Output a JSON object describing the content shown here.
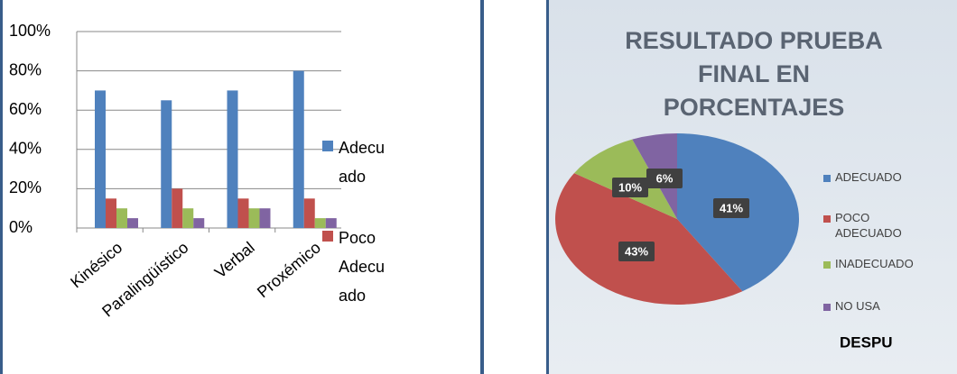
{
  "chart_data": [
    {
      "type": "bar",
      "categories": [
        "Kinésico",
        "Paralingüístico",
        "Verbal",
        "Proxémico"
      ],
      "series": [
        {
          "name": "Adecuado",
          "color": "#4f81bd",
          "values": [
            70,
            65,
            70,
            80
          ]
        },
        {
          "name": "Poco Adecuado",
          "color": "#c0504d",
          "values": [
            15,
            20,
            15,
            15
          ]
        },
        {
          "color": "#9bbb59",
          "values": [
            10,
            10,
            10,
            5
          ]
        },
        {
          "color": "#8064a2",
          "values": [
            5,
            5,
            10,
            5
          ]
        }
      ],
      "ylim": [
        0,
        100
      ],
      "yticks": [
        {
          "value": 0,
          "label": "0%"
        },
        {
          "value": 20,
          "label": "20%"
        },
        {
          "value": 40,
          "label": "40%"
        },
        {
          "value": 60,
          "label": "60%"
        },
        {
          "value": 80,
          "label": "80%"
        },
        {
          "value": 100,
          "label": "100%"
        }
      ],
      "grid": true,
      "legend": "right"
    },
    {
      "type": "pie",
      "title": "RESULTADO PRUEBA FINAL EN PORCENTAJES",
      "categories": [
        "ADECUADO",
        "POCO ADECUADO",
        "INADECUADO",
        "NO USA"
      ],
      "values": [
        41,
        43,
        10,
        6
      ],
      "value_labels": [
        "41%",
        "43%",
        "10%",
        "6%"
      ],
      "colors": [
        "#4f81bd",
        "#c0504d",
        "#9bbb59",
        "#8064a2"
      ],
      "annotation": "DESPU",
      "legend": "right"
    }
  ]
}
